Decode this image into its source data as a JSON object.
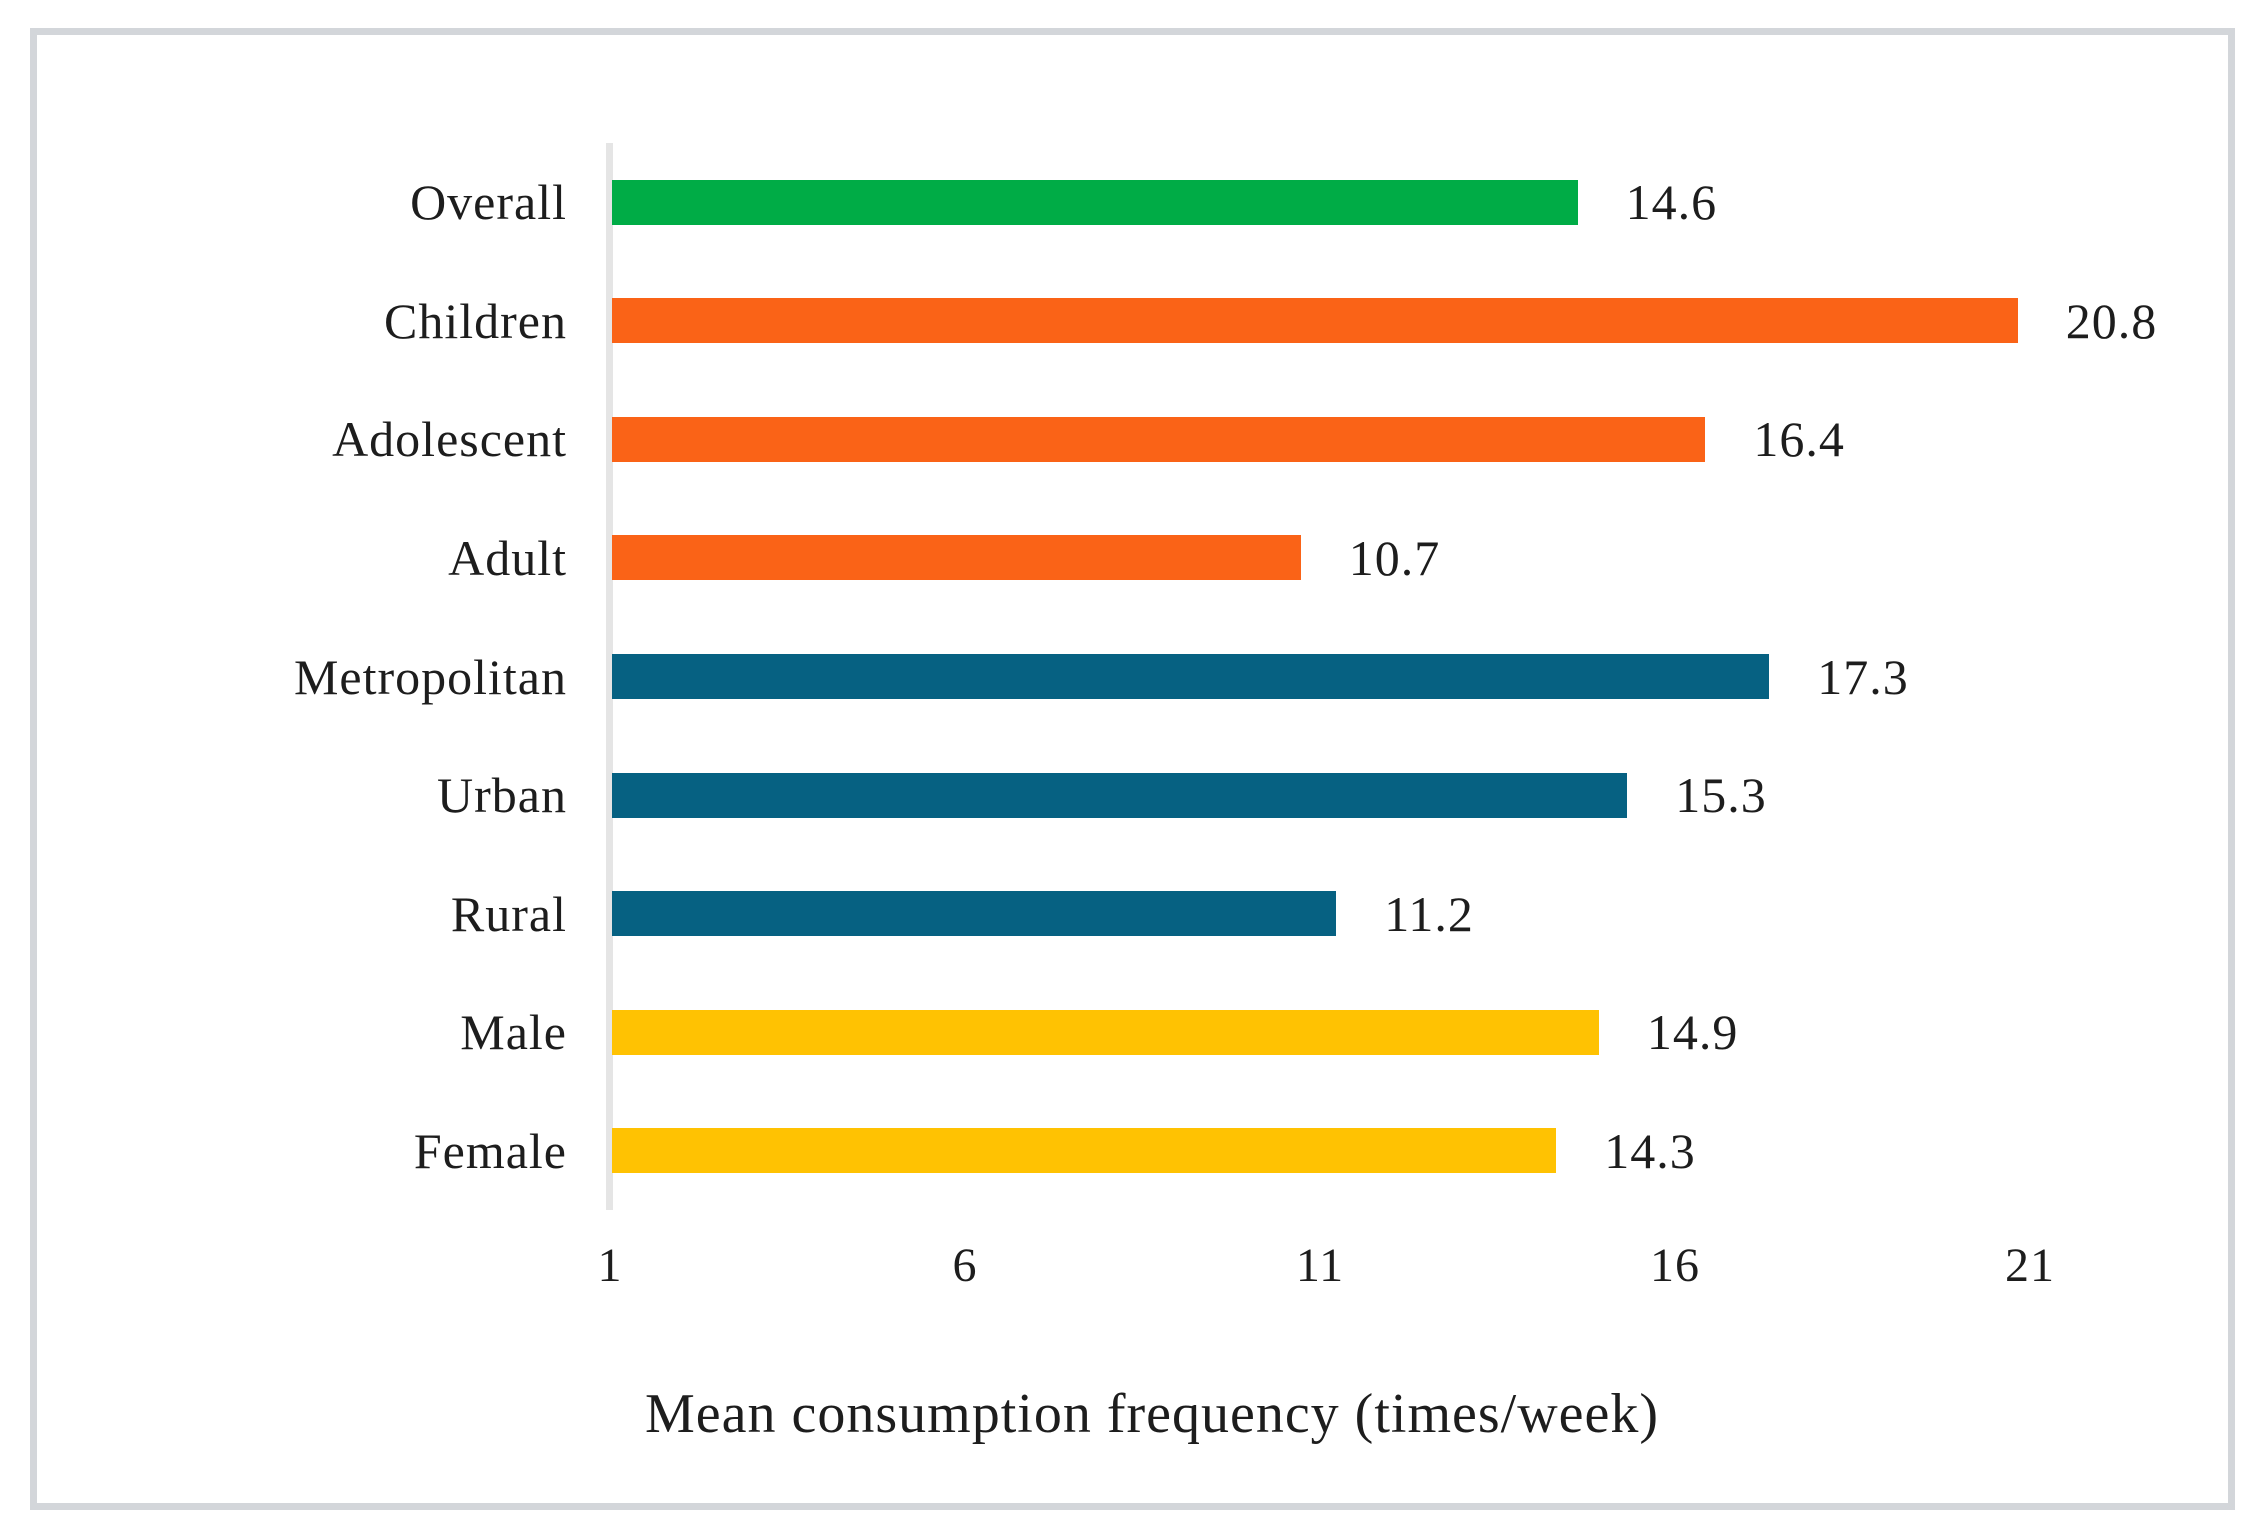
{
  "figure": {
    "border_color": "#d3d6da",
    "background_color": "#ffffff",
    "axis_line_color": "#e5e5e5"
  },
  "chart_data": {
    "type": "bar",
    "orientation": "horizontal",
    "title": "",
    "xlabel": "Mean consumption frequency (times/week)",
    "ylabel": "",
    "categories": [
      "Overall",
      "Children",
      "Adolescent",
      "Adult",
      "Metropolitan",
      "Urban",
      "Rural",
      "Male",
      "Female"
    ],
    "values": [
      14.6,
      20.8,
      16.4,
      10.7,
      17.3,
      15.3,
      11.2,
      14.9,
      14.3
    ],
    "value_labels": [
      "14.6",
      "20.8",
      "16.4",
      "10.7",
      "17.3",
      "15.3",
      "11.2",
      "14.9",
      "14.3"
    ],
    "bar_colors": [
      "#00ac46",
      "#fa6317",
      "#fa6317",
      "#fa6317",
      "#066182",
      "#066182",
      "#066182",
      "#ffc202",
      "#ffc202"
    ],
    "color_groups": {
      "overall": "#00ac46",
      "age_group": "#fa6317",
      "region": "#066182",
      "sex": "#ffc202"
    },
    "x_ticks": [
      "1",
      "6",
      "11",
      "16",
      "21"
    ],
    "xlim": [
      1,
      21
    ],
    "grid": false,
    "legend": "none",
    "value_label_position": "outside-end"
  }
}
